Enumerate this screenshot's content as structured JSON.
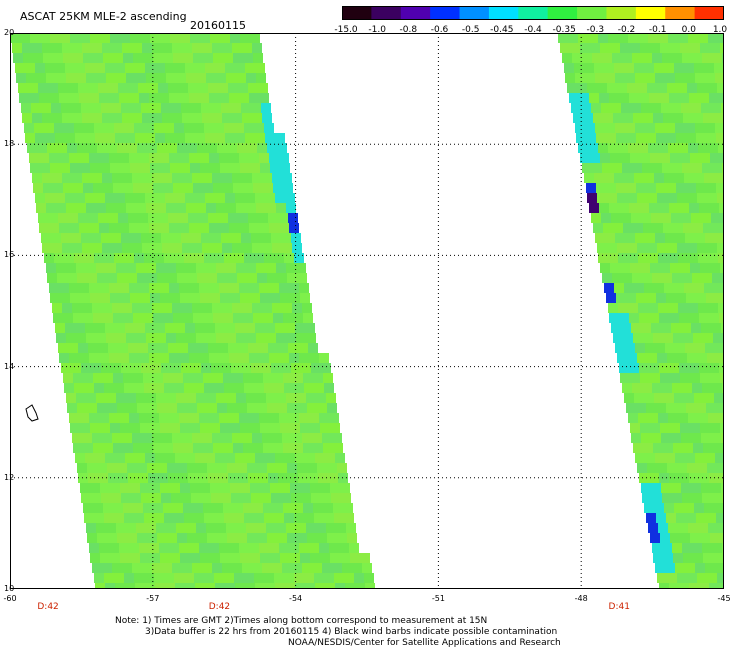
{
  "title": "ASCAT 25KM MLE-2 ascending",
  "date": "20160115",
  "colorbar": {
    "labels": [
      "-15.0",
      "-1.0",
      "-0.8",
      "-0.6",
      "-0.5",
      "-0.45",
      "-0.4",
      "-0.35",
      "-0.3",
      "-0.2",
      "-0.1",
      "0.0",
      "1.0"
    ],
    "colors": [
      "#200010",
      "#3b0060",
      "#5000b0",
      "#0030ff",
      "#0090ff",
      "#00e0ff",
      "#10f0a0",
      "#30f040",
      "#70f040",
      "#b0f020",
      "#ffff00",
      "#ff9000",
      "#ff3000"
    ]
  },
  "axes": {
    "x_labels": [
      "-60",
      "-57",
      "-54",
      "-51",
      "-48",
      "-45"
    ],
    "y_labels": [
      "20",
      "18",
      "16",
      "14",
      "12",
      "10"
    ],
    "x_range": [
      -60,
      -45
    ],
    "y_range": [
      10,
      20
    ]
  },
  "pass_times": [
    {
      "label": "D:42",
      "lon": -59.2
    },
    {
      "label": "D:42",
      "lon": -55.6
    },
    {
      "label": "D:41",
      "lon": -47.2
    }
  ],
  "notes": [
    "Note: 1) Times are GMT 2)Times along bottom correspond to measurement at 15N",
    "3)Data buffer is 22 hrs from 20160115 4) Black wind barbs indicate possible contamination",
    "NOAA/NESDIS/Center for Satellite Applications and Research"
  ],
  "colors": {
    "swath_base": "#7ee84a",
    "swath_edge_cyan": "#22e0d8",
    "swath_edge_blue": "#1030e0",
    "swath_edge_purple": "#400070",
    "grid": "#000000",
    "pass_label": "#cc2200"
  }
}
